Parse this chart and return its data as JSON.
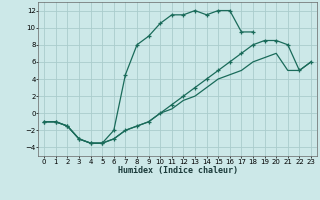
{
  "xlabel": "Humidex (Indice chaleur)",
  "background_color": "#cce8e8",
  "grid_color": "#aacccc",
  "line_color": "#1a6b5a",
  "xlim": [
    -0.5,
    23.5
  ],
  "ylim": [
    -5.0,
    13.0
  ],
  "xticks": [
    0,
    1,
    2,
    3,
    4,
    5,
    6,
    7,
    8,
    9,
    10,
    11,
    12,
    13,
    14,
    15,
    16,
    17,
    18,
    19,
    20,
    21,
    22,
    23
  ],
  "yticks": [
    -4,
    -2,
    0,
    2,
    4,
    6,
    8,
    10,
    12
  ],
  "curve1_x": [
    0,
    1,
    2,
    3,
    4,
    5,
    6,
    7,
    8,
    9,
    10,
    11,
    12,
    13,
    14,
    15,
    16,
    17,
    18
  ],
  "curve1_y": [
    -1,
    -1,
    -1.5,
    -3,
    -3.5,
    -3.5,
    -2,
    4.5,
    8,
    9,
    10.5,
    11.5,
    11.5,
    12,
    11.5,
    12,
    12,
    9.5,
    9.5
  ],
  "curve2_x": [
    0,
    1,
    2,
    3,
    4,
    5,
    6,
    7,
    8,
    9,
    10,
    11,
    12,
    13,
    14,
    15,
    16,
    17,
    18,
    19,
    20,
    21,
    22,
    23
  ],
  "curve2_y": [
    -1,
    -1,
    -1.5,
    -3,
    -3.5,
    -3.5,
    -3,
    -2,
    -1.5,
    -1,
    0,
    1,
    2,
    3,
    4,
    5,
    6,
    7,
    8,
    8.5,
    8.5,
    8,
    5,
    6
  ],
  "curve3_x": [
    0,
    1,
    2,
    3,
    4,
    5,
    6,
    7,
    8,
    9,
    10,
    11,
    12,
    13,
    14,
    15,
    16,
    17,
    18,
    19,
    20,
    21,
    22,
    23
  ],
  "curve3_y": [
    -1,
    -1,
    -1.5,
    -3,
    -3.5,
    -3.5,
    -3,
    -2,
    -1.5,
    -1,
    0,
    0.5,
    1.5,
    2,
    3,
    4,
    4.5,
    5,
    6,
    6.5,
    7,
    5,
    5,
    6
  ]
}
